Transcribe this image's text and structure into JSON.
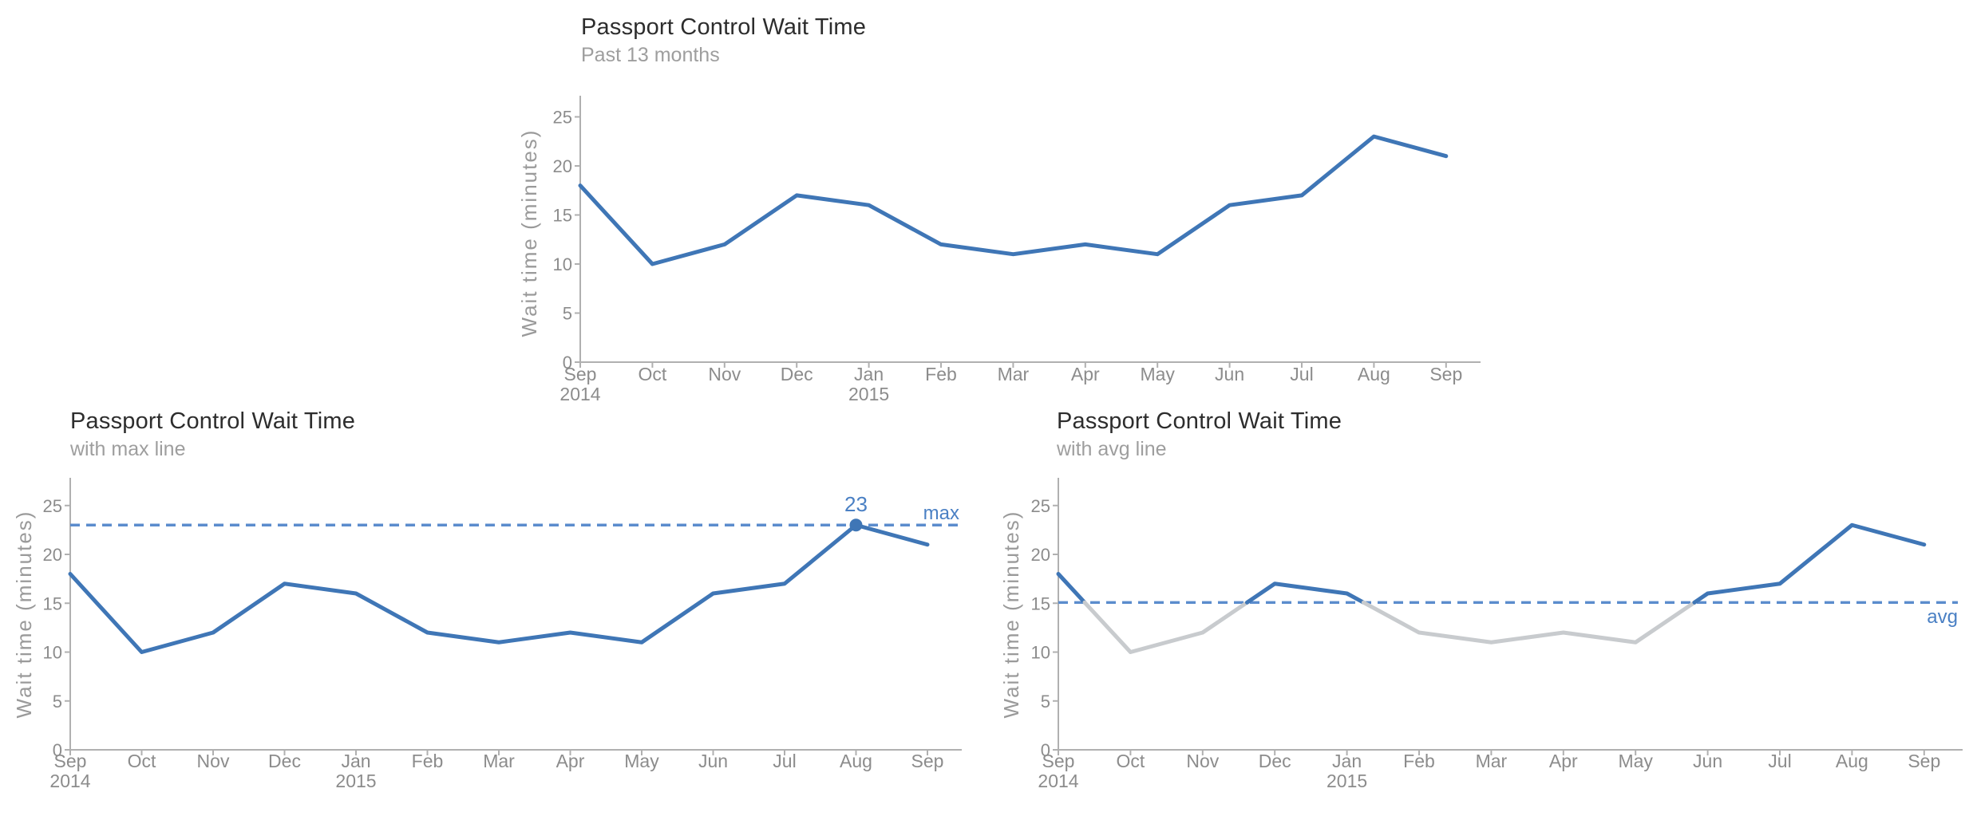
{
  "page": {
    "background": "#ffffff"
  },
  "colors": {
    "accent_blue": "#3f76b6",
    "dashed_blue": "#5b8ccd",
    "label_blue": "#4a80c4",
    "gray_series": "#c8cbce",
    "axis_gray": "#b0b0b0",
    "tick_text_gray": "#8c8c8c",
    "title_text": "#2d2d2d",
    "subtitle_text": "#9e9e9e",
    "ylabel_text": "#9a9a9a"
  },
  "chart_data": [
    {
      "type": "line",
      "title": "Passport Control Wait Time",
      "subtitle": "Past 13 months",
      "xlabel": "",
      "ylabel": "Wait time (minutes)",
      "yticks": [
        0,
        5,
        10,
        15,
        20,
        25
      ],
      "ylim": [
        0,
        27
      ],
      "grid": false,
      "legend": "none",
      "categories": [
        "Sep",
        "Oct",
        "Nov",
        "Dec",
        "Jan",
        "Feb",
        "Mar",
        "Apr",
        "May",
        "Jun",
        "Jul",
        "Aug",
        "Sep"
      ],
      "year_labels": [
        {
          "index": 0,
          "label": "2014"
        },
        {
          "index": 4,
          "label": "2015"
        }
      ],
      "values": [
        18,
        10,
        12,
        17,
        16,
        12,
        11,
        12,
        11,
        16,
        17,
        23,
        21
      ]
    },
    {
      "type": "line",
      "title": "Passport Control Wait Time",
      "subtitle": "with max line",
      "xlabel": "",
      "ylabel": "Wait time (minutes)",
      "yticks": [
        0,
        5,
        10,
        15,
        20,
        25
      ],
      "ylim": [
        0,
        27
      ],
      "grid": false,
      "legend": "none",
      "categories": [
        "Sep",
        "Oct",
        "Nov",
        "Dec",
        "Jan",
        "Feb",
        "Mar",
        "Apr",
        "May",
        "Jun",
        "Jul",
        "Aug",
        "Sep"
      ],
      "year_labels": [
        {
          "index": 0,
          "label": "2014"
        },
        {
          "index": 4,
          "label": "2015"
        }
      ],
      "values": [
        18,
        10,
        12,
        17,
        16,
        12,
        11,
        12,
        11,
        16,
        17,
        23,
        21
      ],
      "ref_line": {
        "kind": "max",
        "value": 23,
        "label": "max",
        "annotation_text": "23",
        "annotation_index": 11,
        "marker": true
      }
    },
    {
      "type": "line",
      "title": "Passport Control Wait Time",
      "subtitle": "with avg line",
      "xlabel": "",
      "ylabel": "Wait time (minutes)",
      "yticks": [
        0,
        5,
        10,
        15,
        20,
        25
      ],
      "ylim": [
        0,
        27
      ],
      "grid": false,
      "legend": "none",
      "categories": [
        "Sep",
        "Oct",
        "Nov",
        "Dec",
        "Jan",
        "Feb",
        "Mar",
        "Apr",
        "May",
        "Jun",
        "Jul",
        "Aug",
        "Sep"
      ],
      "year_labels": [
        {
          "index": 0,
          "label": "2014"
        },
        {
          "index": 4,
          "label": "2015"
        }
      ],
      "values": [
        18,
        10,
        12,
        17,
        16,
        12,
        11,
        12,
        11,
        16,
        17,
        23,
        21
      ],
      "ref_line": {
        "kind": "avg",
        "value": 15.08,
        "label": "avg"
      },
      "color_rule": "segments below avg line drawn gray, above avg drawn blue"
    }
  ]
}
